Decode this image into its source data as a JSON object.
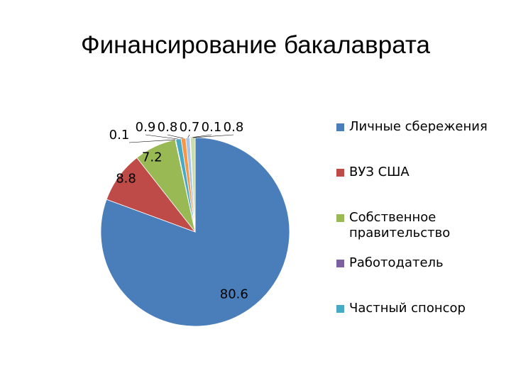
{
  "chart_data": {
    "type": "pie",
    "title": "Финансирование бакалаврата",
    "categories": [
      "Личные сбережения",
      "ВУЗ США",
      "Собственное правительство",
      "Работодатель",
      "Частный спонсор",
      null,
      null,
      null,
      null
    ],
    "values": [
      80.6,
      8.8,
      7.2,
      0.1,
      0.9,
      0.8,
      0.7,
      0.1,
      0.8
    ],
    "colors": [
      "#4a7ebb",
      "#be4b48",
      "#98b954",
      "#7d60a0",
      "#46aac5",
      "#f79646",
      "#a9c4e7",
      "#e8a9a8",
      "#c9dcaa"
    ],
    "legend": "right"
  }
}
